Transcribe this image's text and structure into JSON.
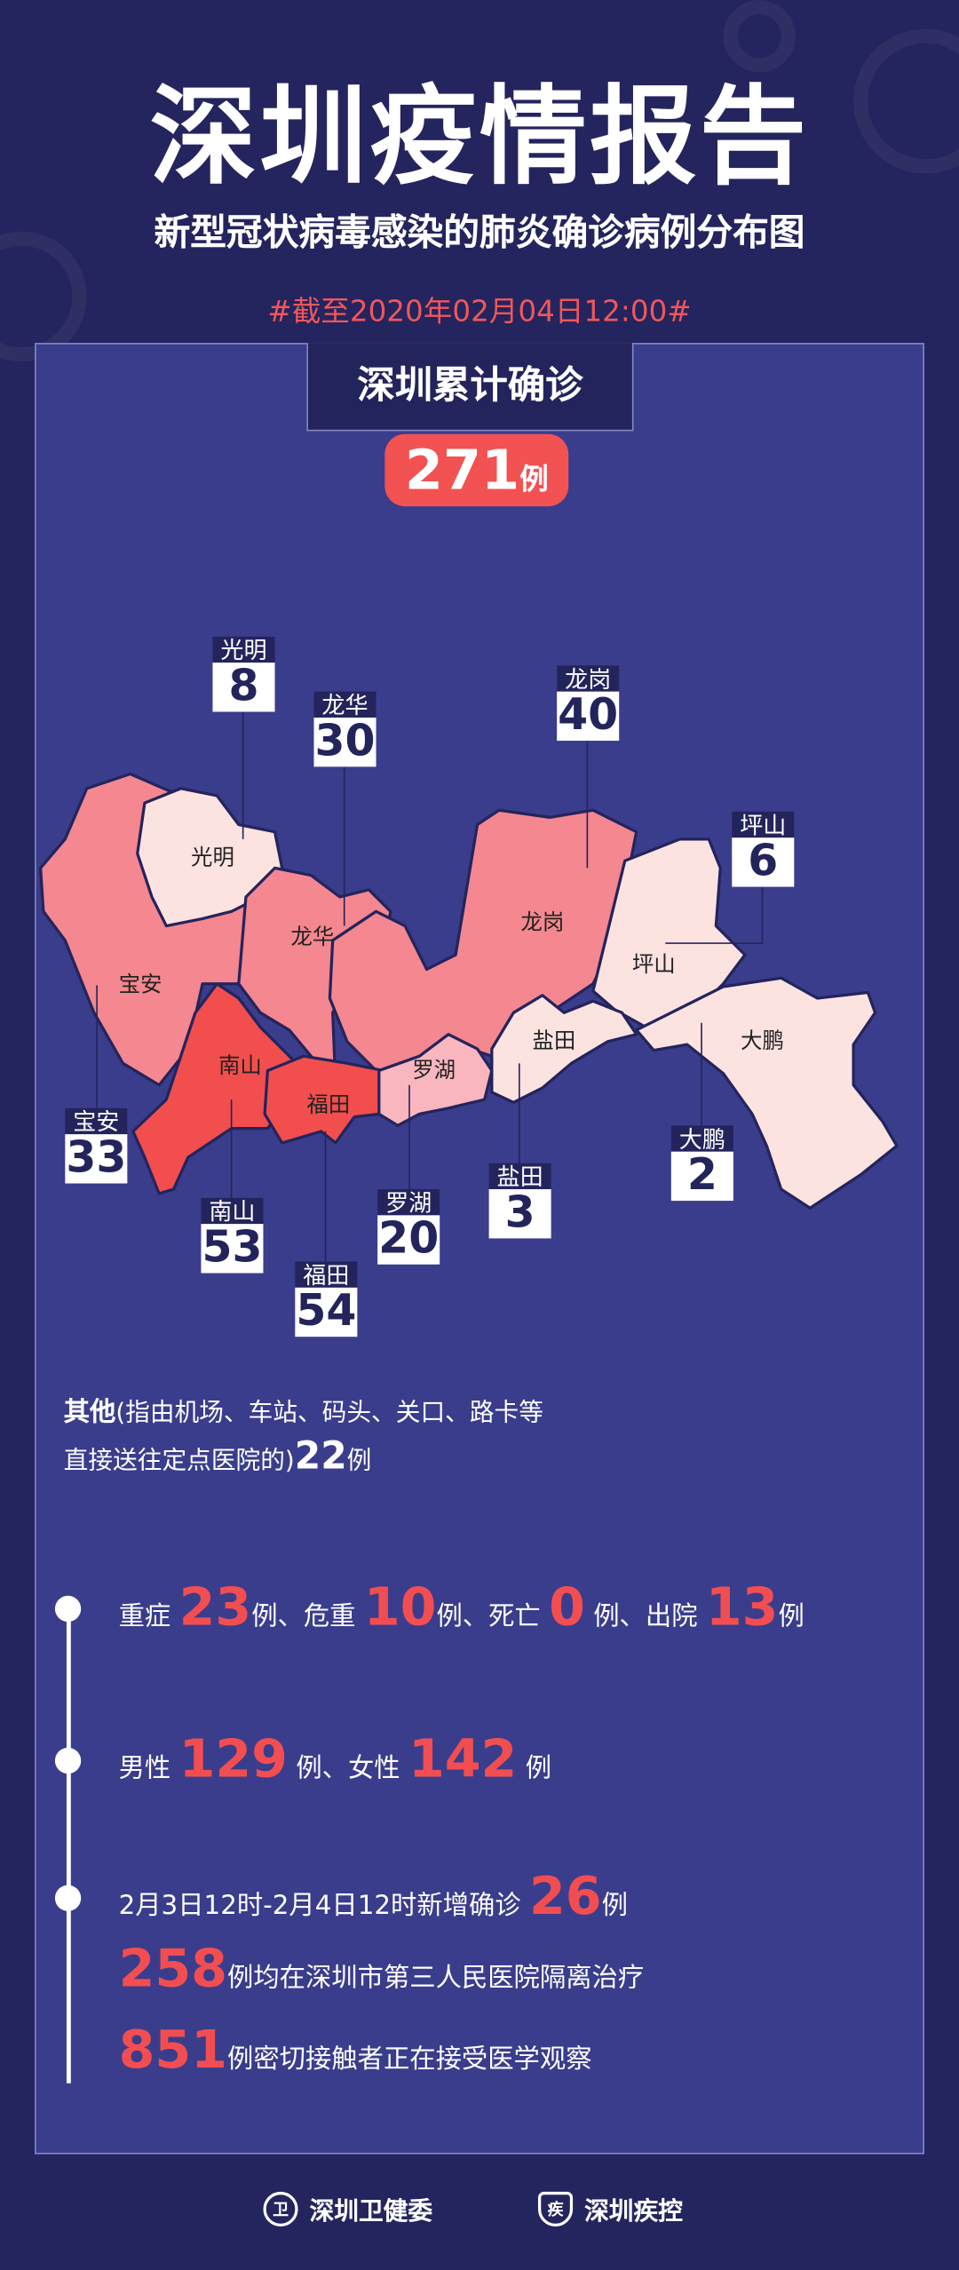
{
  "header": {
    "title": "深圳疫情报告",
    "subtitle": "新型冠状病毒感染的肺炎确诊病例分布图",
    "as_of": "#截至2020年02月04日12:00#"
  },
  "total": {
    "label": "深圳累计确诊",
    "value": "271",
    "unit": "例"
  },
  "colors": {
    "background": "#24245e",
    "panel": "#3a3d8c",
    "accent_red": "#f24e52",
    "label_navy": "#24245c"
  },
  "districts": [
    {
      "name": "宝安",
      "count": "33",
      "fill": "#f4878f"
    },
    {
      "name": "光明",
      "count": "8",
      "fill": "#fde3e0"
    },
    {
      "name": "龙华",
      "count": "30",
      "fill": "#f4878f"
    },
    {
      "name": "龙岗",
      "count": "40",
      "fill": "#f4878f"
    },
    {
      "name": "南山",
      "count": "53",
      "fill": "#f24e4e"
    },
    {
      "name": "福田",
      "count": "54",
      "fill": "#f24e4e"
    },
    {
      "name": "罗湖",
      "count": "20",
      "fill": "#f9b6be"
    },
    {
      "name": "坪山",
      "count": "6",
      "fill": "#fde3e0"
    },
    {
      "name": "盐田",
      "count": "3",
      "fill": "#fde3e0"
    },
    {
      "name": "大鹏",
      "count": "2",
      "fill": "#fde3e0"
    }
  ],
  "others": {
    "label": "其他",
    "line1": "(指由机场、车站、码头、关口、路卡等",
    "line2": "直接送往定点医院的)",
    "value": "22",
    "unit": "例"
  },
  "stats": [
    {
      "segments": [
        {
          "t": "重症 "
        },
        {
          "n": "23"
        },
        {
          "t": "例、危重 "
        },
        {
          "n": "10"
        },
        {
          "t": "例、死亡 "
        },
        {
          "n": "0"
        },
        {
          "t": " 例、出院 "
        },
        {
          "n": "13"
        },
        {
          "t": "例"
        }
      ]
    },
    {
      "segments": [
        {
          "t": "男性 "
        },
        {
          "n": "129"
        },
        {
          "t": " 例、女性 "
        },
        {
          "n": "142"
        },
        {
          "t": " 例"
        }
      ]
    },
    {
      "segments": [
        {
          "t": "2月3日12时-2月4日12时新增确诊 "
        },
        {
          "n": "26"
        },
        {
          "t": "例"
        }
      ]
    },
    {
      "segments": [
        {
          "n": "258"
        },
        {
          "t": "例均在深圳市第三人民医院隔离治疗"
        }
      ]
    },
    {
      "segments": [
        {
          "n": "851"
        },
        {
          "t": "例密切接触者正在接受医学观察"
        }
      ]
    }
  ],
  "footer": {
    "org1": "深圳卫健委",
    "org1_icon": "health-commission-emblem-icon",
    "org2": "深圳疾控",
    "org2_icon": "cdc-shield-icon"
  }
}
